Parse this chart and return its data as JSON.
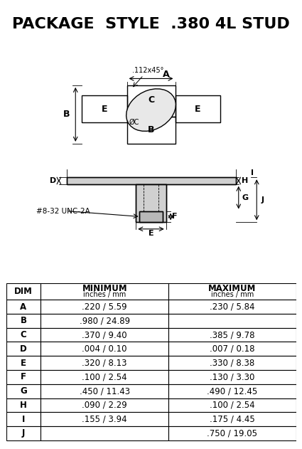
{
  "title": "PACKAGE  STYLE  .380 4L STUD",
  "bg_color": "#ffffff",
  "title_fontsize": 16,
  "table_headers": [
    "DIM",
    "MINIMUM\ninches / mm",
    "MAXIMUM\ninches / mm"
  ],
  "table_rows": [
    [
      "A",
      ".220 / 5.59",
      ".230 / 5.84"
    ],
    [
      "B",
      ".980 / 24.89",
      ""
    ],
    [
      "C",
      ".370 / 9.40",
      ".385 / 9.78"
    ],
    [
      "D",
      ".004 / 0.10",
      ".007 / 0.18"
    ],
    [
      "E",
      ".320 / 8.13",
      ".330 / 8.38"
    ],
    [
      "F",
      ".100 / 2.54",
      ".130 / 3.30"
    ],
    [
      "G",
      ".450 / 11.43",
      ".490 / 12.45"
    ],
    [
      "H",
      ".090 / 2.29",
      ".100 / 2.54"
    ],
    [
      "I",
      ".155 / 3.94",
      ".175 / 4.45"
    ],
    [
      "J",
      "",
      ".750 / 19.05"
    ]
  ],
  "annotation_chamfer": ".112x45°",
  "annotation_screw": "#8-32 UNC-2A"
}
